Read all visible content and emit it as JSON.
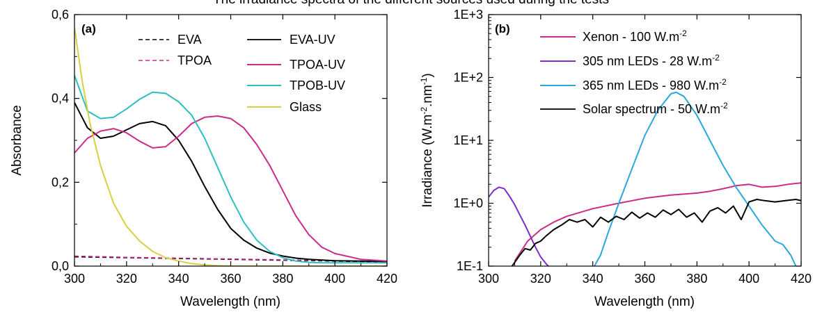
{
  "caption_fragment": "The irradiance spectra of the different sources used during the tests",
  "chart_data": [
    {
      "type": "line",
      "panel_label": "(a)",
      "xlabel": "Wavelength (nm)",
      "ylabel": "Absorbance",
      "xlim": [
        300,
        420
      ],
      "ylim": [
        0,
        0.6
      ],
      "yscale": "linear",
      "xticks": [
        300,
        320,
        340,
        360,
        380,
        400,
        420
      ],
      "yticks": [
        0,
        0.2,
        0.4,
        0.6
      ],
      "ytick_labels": [
        "0,0",
        "0,2",
        "0,4",
        "0,6"
      ],
      "legend_placement": "top-right, two columns",
      "series": [
        {
          "name": "EVA",
          "color": "#000000",
          "dash": true,
          "x": [
            300,
            320,
            340,
            360,
            380,
            400,
            420
          ],
          "y": [
            0.022,
            0.02,
            0.018,
            0.016,
            0.014,
            0.012,
            0.01
          ]
        },
        {
          "name": "TPOA",
          "color": "#cc2a88",
          "dash": true,
          "x": [
            300,
            320,
            340,
            360,
            380,
            400,
            420
          ],
          "y": [
            0.024,
            0.021,
            0.019,
            0.017,
            0.015,
            0.013,
            0.011
          ]
        },
        {
          "name": "EVA-UV",
          "color": "#000000",
          "dash": false,
          "x": [
            300,
            305,
            310,
            315,
            320,
            325,
            330,
            335,
            340,
            345,
            350,
            355,
            360,
            365,
            370,
            375,
            380,
            385,
            390,
            400,
            410,
            420
          ],
          "y": [
            0.39,
            0.33,
            0.305,
            0.31,
            0.325,
            0.34,
            0.345,
            0.335,
            0.3,
            0.25,
            0.19,
            0.135,
            0.09,
            0.062,
            0.043,
            0.031,
            0.024,
            0.019,
            0.016,
            0.013,
            0.012,
            0.011
          ]
        },
        {
          "name": "TPOA-UV",
          "color": "#cc2a88",
          "dash": false,
          "x": [
            300,
            305,
            310,
            315,
            320,
            325,
            330,
            335,
            340,
            345,
            350,
            355,
            360,
            365,
            370,
            375,
            380,
            385,
            390,
            395,
            400,
            410,
            420
          ],
          "y": [
            0.27,
            0.305,
            0.322,
            0.328,
            0.318,
            0.298,
            0.282,
            0.285,
            0.31,
            0.34,
            0.355,
            0.358,
            0.352,
            0.33,
            0.29,
            0.24,
            0.18,
            0.12,
            0.075,
            0.045,
            0.03,
            0.016,
            0.012
          ]
        },
        {
          "name": "TPOB-UV",
          "color": "#2bbfbf",
          "dash": false,
          "x": [
            300,
            305,
            310,
            315,
            320,
            325,
            330,
            335,
            340,
            345,
            350,
            355,
            360,
            365,
            370,
            375,
            380,
            385,
            390,
            395,
            400,
            410,
            420
          ],
          "y": [
            0.455,
            0.37,
            0.352,
            0.355,
            0.375,
            0.398,
            0.415,
            0.412,
            0.392,
            0.36,
            0.305,
            0.235,
            0.165,
            0.105,
            0.062,
            0.035,
            0.02,
            0.012,
            0.009,
            0.008,
            0.008,
            0.008,
            0.008
          ]
        },
        {
          "name": "Glass",
          "color": "#d8d040",
          "dash": false,
          "x": [
            300,
            303,
            306,
            310,
            315,
            320,
            325,
            330,
            335,
            340,
            345,
            350,
            355,
            360,
            380,
            420
          ],
          "y": [
            0.57,
            0.44,
            0.34,
            0.24,
            0.15,
            0.095,
            0.06,
            0.035,
            0.02,
            0.012,
            0.006,
            0.003,
            0.001,
            0.0,
            0.0,
            0.0
          ]
        }
      ]
    },
    {
      "type": "line",
      "panel_label": "(b)",
      "xlabel": "Wavelength (nm)",
      "ylabel_main": "Irradiance (W.m",
      "ylabel_sup1": "-2",
      "ylabel_mid": ".nm",
      "ylabel_sup2": "-1",
      "ylabel_end": ")",
      "xlim": [
        300,
        420
      ],
      "ylim": [
        0.1,
        1000
      ],
      "yscale": "log",
      "xticks": [
        300,
        320,
        340,
        360,
        380,
        400,
        420
      ],
      "yticks": [
        0.1,
        1,
        10,
        100,
        1000
      ],
      "ytick_labels": [
        "1E-1",
        "1E+0",
        "1E+1",
        "1E+2",
        "1E+3"
      ],
      "legend_placement": "top-right",
      "series": [
        {
          "name": "Xenon - 100 W.m",
          "unit_sup": "-2",
          "color": "#cc2a88",
          "x": [
            310,
            315,
            320,
            325,
            330,
            340,
            350,
            360,
            370,
            380,
            385,
            390,
            395,
            400,
            405,
            410,
            415,
            420
          ],
          "y": [
            0.12,
            0.25,
            0.38,
            0.5,
            0.62,
            0.82,
            1.0,
            1.2,
            1.35,
            1.45,
            1.55,
            1.7,
            1.9,
            2.0,
            1.8,
            1.85,
            2.0,
            2.1
          ]
        },
        {
          "name": "305 nm LEDs - 28 W.m",
          "unit_sup": "-2",
          "color": "#7b2dc9",
          "x": [
            300,
            302,
            304,
            306,
            308,
            310,
            312,
            314,
            316,
            318,
            320,
            322,
            324
          ],
          "y": [
            1.25,
            1.6,
            1.8,
            1.7,
            1.3,
            0.95,
            0.65,
            0.45,
            0.3,
            0.2,
            0.14,
            0.11,
            0.09
          ]
        },
        {
          "name": "365 nm LEDs - 980 W.m",
          "unit_sup": "-2",
          "color": "#2aa7dc",
          "x": [
            340,
            343,
            346,
            350,
            355,
            360,
            365,
            370,
            372,
            375,
            380,
            385,
            390,
            395,
            400,
            405,
            410,
            413,
            416,
            418,
            420
          ],
          "y": [
            0.09,
            0.15,
            0.35,
            1.0,
            3.5,
            12,
            30,
            55,
            58,
            50,
            25,
            10,
            4,
            1.8,
            0.9,
            0.45,
            0.25,
            0.22,
            0.15,
            0.1,
            0.08
          ]
        },
        {
          "name": "Solar spectrum - 50 W.m",
          "unit_sup": "-2",
          "color": "#000000",
          "x": [
            309,
            312,
            314,
            316,
            318,
            320,
            322,
            325,
            328,
            331,
            334,
            337,
            340,
            343,
            346,
            349,
            352,
            355,
            358,
            361,
            364,
            367,
            370,
            373,
            376,
            379,
            382,
            385,
            388,
            391,
            394,
            397,
            400,
            403,
            406,
            410,
            414,
            418,
            420
          ],
          "y": [
            0.1,
            0.15,
            0.19,
            0.18,
            0.23,
            0.25,
            0.3,
            0.38,
            0.45,
            0.55,
            0.5,
            0.55,
            0.42,
            0.6,
            0.5,
            0.62,
            0.55,
            0.72,
            0.58,
            0.7,
            0.6,
            0.78,
            0.66,
            0.8,
            0.6,
            0.7,
            0.5,
            0.75,
            0.85,
            0.7,
            0.9,
            0.55,
            1.05,
            1.15,
            1.1,
            1.05,
            1.1,
            1.15,
            1.1
          ]
        }
      ]
    }
  ]
}
